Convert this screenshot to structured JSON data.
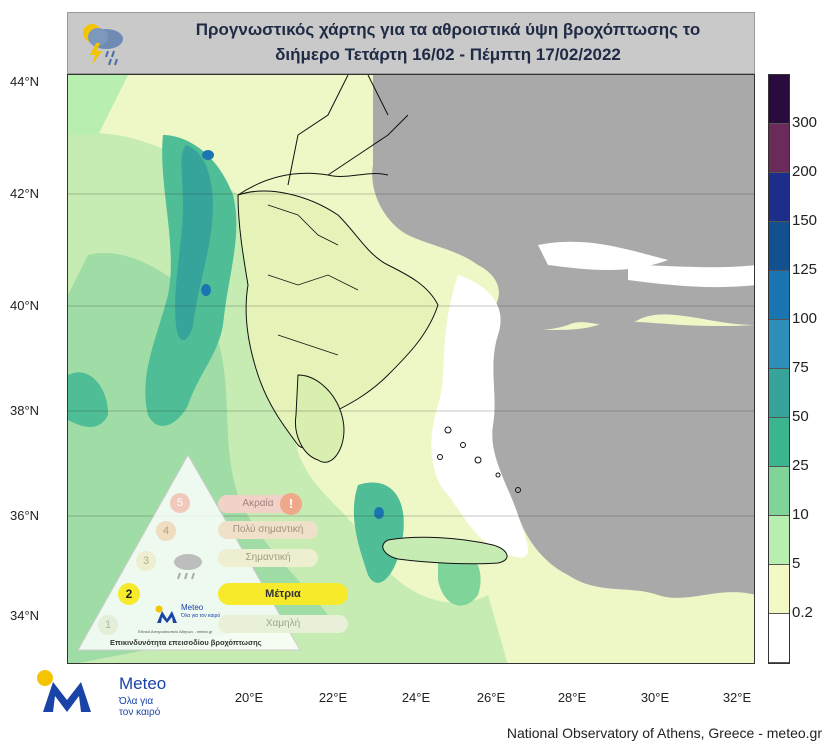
{
  "title": {
    "line1": "Προγνωστικός χάρτης για τα αθροιστικά ύψη βροχόπτωσης το",
    "line2": "διήμερο Τετάρτη 16/02 - Πέμπτη 17/02/2022"
  },
  "lat_labels": [
    "44°N",
    "42°N",
    "40°N",
    "38°N",
    "36°N",
    "34°N"
  ],
  "lon_labels": [
    "20°E",
    "22°E",
    "24°E",
    "26°E",
    "28°E",
    "30°E",
    "32°E"
  ],
  "legend": {
    "labels": [
      "300",
      "200",
      "150",
      "125",
      "100",
      "75",
      "50",
      "25",
      "10",
      "5",
      "0.2"
    ],
    "colors": [
      "#2a0b3d",
      "#6a2a5a",
      "#1c2d8a",
      "#13508f",
      "#1b75b0",
      "#2e8fba",
      "#36a49a",
      "#3bb58e",
      "#7fd49a",
      "#b8eeb0",
      "#f3f8c4",
      "#ffffff"
    ]
  },
  "risk_panel": {
    "levels": [
      "5",
      "4",
      "3",
      "2",
      "1"
    ],
    "labels": [
      "Ακραία",
      "Πολύ σημαντική",
      "Σημαντική",
      "Μέτρια",
      "Χαμηλή"
    ],
    "caption": "Επικινδυνότητα επεισοδίου βροχόπτωσης",
    "brand": "Meteo",
    "brand_sub": "Όλα για τον καιρό",
    "brand_small": "Εθνικό Αστεροσκοπείο Αθηνών - meteo.gr",
    "active_level": "2"
  },
  "logo": {
    "name": "Meteo",
    "tagline1": "Όλα για",
    "tagline2": "τον καιρό"
  },
  "footer": "National Observatory of Athens, Greece - meteo.gr"
}
